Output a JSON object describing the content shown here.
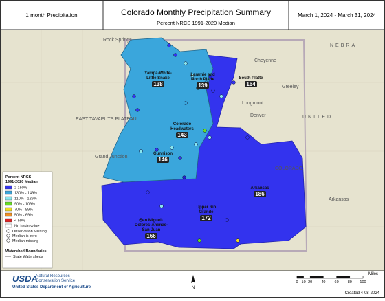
{
  "header": {
    "left": "1 month Precipitation",
    "title": "Colorado Monthly Precipitation Summary",
    "subtitle": "Percent NRCS 1991-2020 Median",
    "dates": "March 1, 2024 - March 31, 2024"
  },
  "basins": [
    {
      "lines": [
        "Yampa-White-",
        "Little Snake"
      ],
      "value": 138
    },
    {
      "lines": [
        "Laramie and",
        "North Platte"
      ],
      "value": 139
    },
    {
      "lines": [
        "South Platte"
      ],
      "value": 164
    },
    {
      "lines": [
        "Colorado",
        "Headwaters"
      ],
      "value": 143
    },
    {
      "lines": [
        "Gunnison"
      ],
      "value": 146
    },
    {
      "lines": [
        "Arkansas"
      ],
      "value": 186
    },
    {
      "lines": [
        "Upper Rio",
        "Grande"
      ],
      "value": 172
    },
    {
      "lines": [
        "San Miguel-",
        "Dolores-Animas-",
        "San Juan"
      ],
      "value": 166
    }
  ],
  "places": [
    "Rock Springs",
    "Cheyenne",
    "NEBRA",
    "Greeley",
    "Longmont",
    "Denver",
    "UNITED",
    "COLORADO",
    "Grand Junction",
    "Arkansas",
    "EAST TAVAPUTS PLATEAU"
  ],
  "legend": {
    "title": [
      "Percent NRCS",
      "1991-2020 Median"
    ],
    "classes": [
      {
        "label": "≥ 150%",
        "color": "#3333ee"
      },
      {
        "label": "130% - 149%",
        "color": "#3aa6dc"
      },
      {
        "label": "110% - 129%",
        "color": "#8ae6ee"
      },
      {
        "label": "90% - 109%",
        "color": "#66dd22"
      },
      {
        "label": "70% - 89%",
        "color": "#eedd22"
      },
      {
        "label": "50% - 69%",
        "color": "#f09022"
      },
      {
        "label": "< 50%",
        "color": "#e02222"
      },
      {
        "label": "No basin value",
        "color": "#ffffff"
      }
    ],
    "symbols": [
      "Observation Missing",
      "Median is zero",
      "Median missing"
    ],
    "boundaries_title": "Watershed Boundaries",
    "boundary": "State Watersheds"
  },
  "footer": {
    "agency": "USDA",
    "line1": "Natural Resources",
    "line2": "Conservation Service",
    "department": "United States Department of Agriculture",
    "north": "N",
    "scale_unit": "Miles",
    "scale_ticks": [
      0,
      10,
      20,
      40,
      60,
      80,
      100
    ],
    "created": "Created 4-08-2024"
  }
}
